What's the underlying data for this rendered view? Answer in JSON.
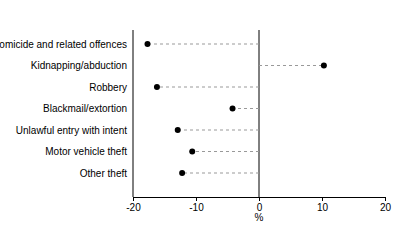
{
  "chart_data": {
    "type": "dot",
    "orientation": "horizontal",
    "categories": [
      "Homicide and related offences",
      "Kidnapping/abduction",
      "Robbery",
      "Blackmail/extortion",
      "Unlawful entry with intent",
      "Motor vehicle theft",
      "Other theft"
    ],
    "values": [
      -17.7,
      10.3,
      -16.2,
      -4.2,
      -12.9,
      -10.6,
      -12.2
    ],
    "color": "#000000",
    "marker": "circle",
    "line_style": "dashed",
    "x_label": "%",
    "xlim": [
      -20,
      20
    ],
    "xticks": [
      -20,
      -10,
      0,
      10,
      20
    ]
  }
}
